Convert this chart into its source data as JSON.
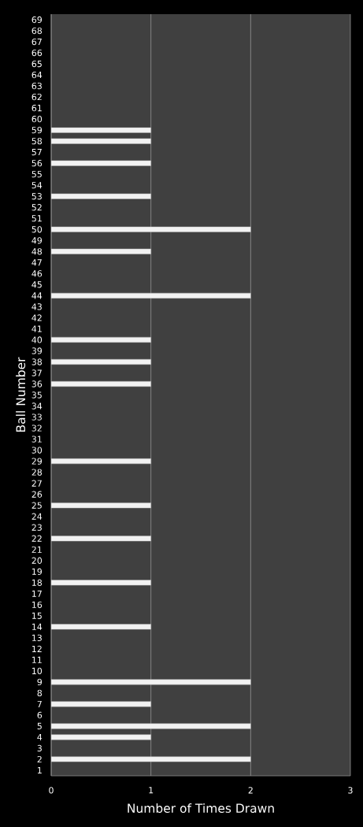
{
  "chart_data": {
    "type": "bar",
    "orientation": "horizontal",
    "xlabel": "Number of Times Drawn",
    "ylabel": "Ball Number",
    "categories": [
      "69",
      "68",
      "67",
      "66",
      "65",
      "64",
      "63",
      "62",
      "61",
      "60",
      "59",
      "58",
      "57",
      "56",
      "55",
      "54",
      "53",
      "52",
      "51",
      "50",
      "49",
      "48",
      "47",
      "46",
      "45",
      "44",
      "43",
      "42",
      "41",
      "40",
      "39",
      "38",
      "37",
      "36",
      "35",
      "34",
      "33",
      "32",
      "31",
      "30",
      "29",
      "28",
      "27",
      "26",
      "25",
      "24",
      "23",
      "22",
      "21",
      "20",
      "19",
      "18",
      "17",
      "16",
      "15",
      "14",
      "13",
      "12",
      "11",
      "10",
      "9",
      "8",
      "7",
      "6",
      "5",
      "4",
      "3",
      "2",
      "1"
    ],
    "values": [
      0,
      0,
      0,
      0,
      0,
      0,
      0,
      0,
      0,
      0,
      1,
      1,
      0,
      1,
      0,
      0,
      1,
      0,
      0,
      2,
      0,
      1,
      0,
      0,
      0,
      2,
      0,
      0,
      0,
      1,
      0,
      1,
      0,
      1,
      0,
      0,
      0,
      0,
      0,
      0,
      1,
      0,
      0,
      0,
      1,
      0,
      0,
      1,
      0,
      0,
      0,
      1,
      0,
      0,
      0,
      1,
      0,
      0,
      0,
      0,
      2,
      0,
      1,
      0,
      2,
      1,
      0,
      2,
      0
    ],
    "color": "#f2f2f2",
    "xlim": [
      0,
      3
    ],
    "xticks": [
      0,
      1,
      2,
      3
    ],
    "grid": "x"
  }
}
